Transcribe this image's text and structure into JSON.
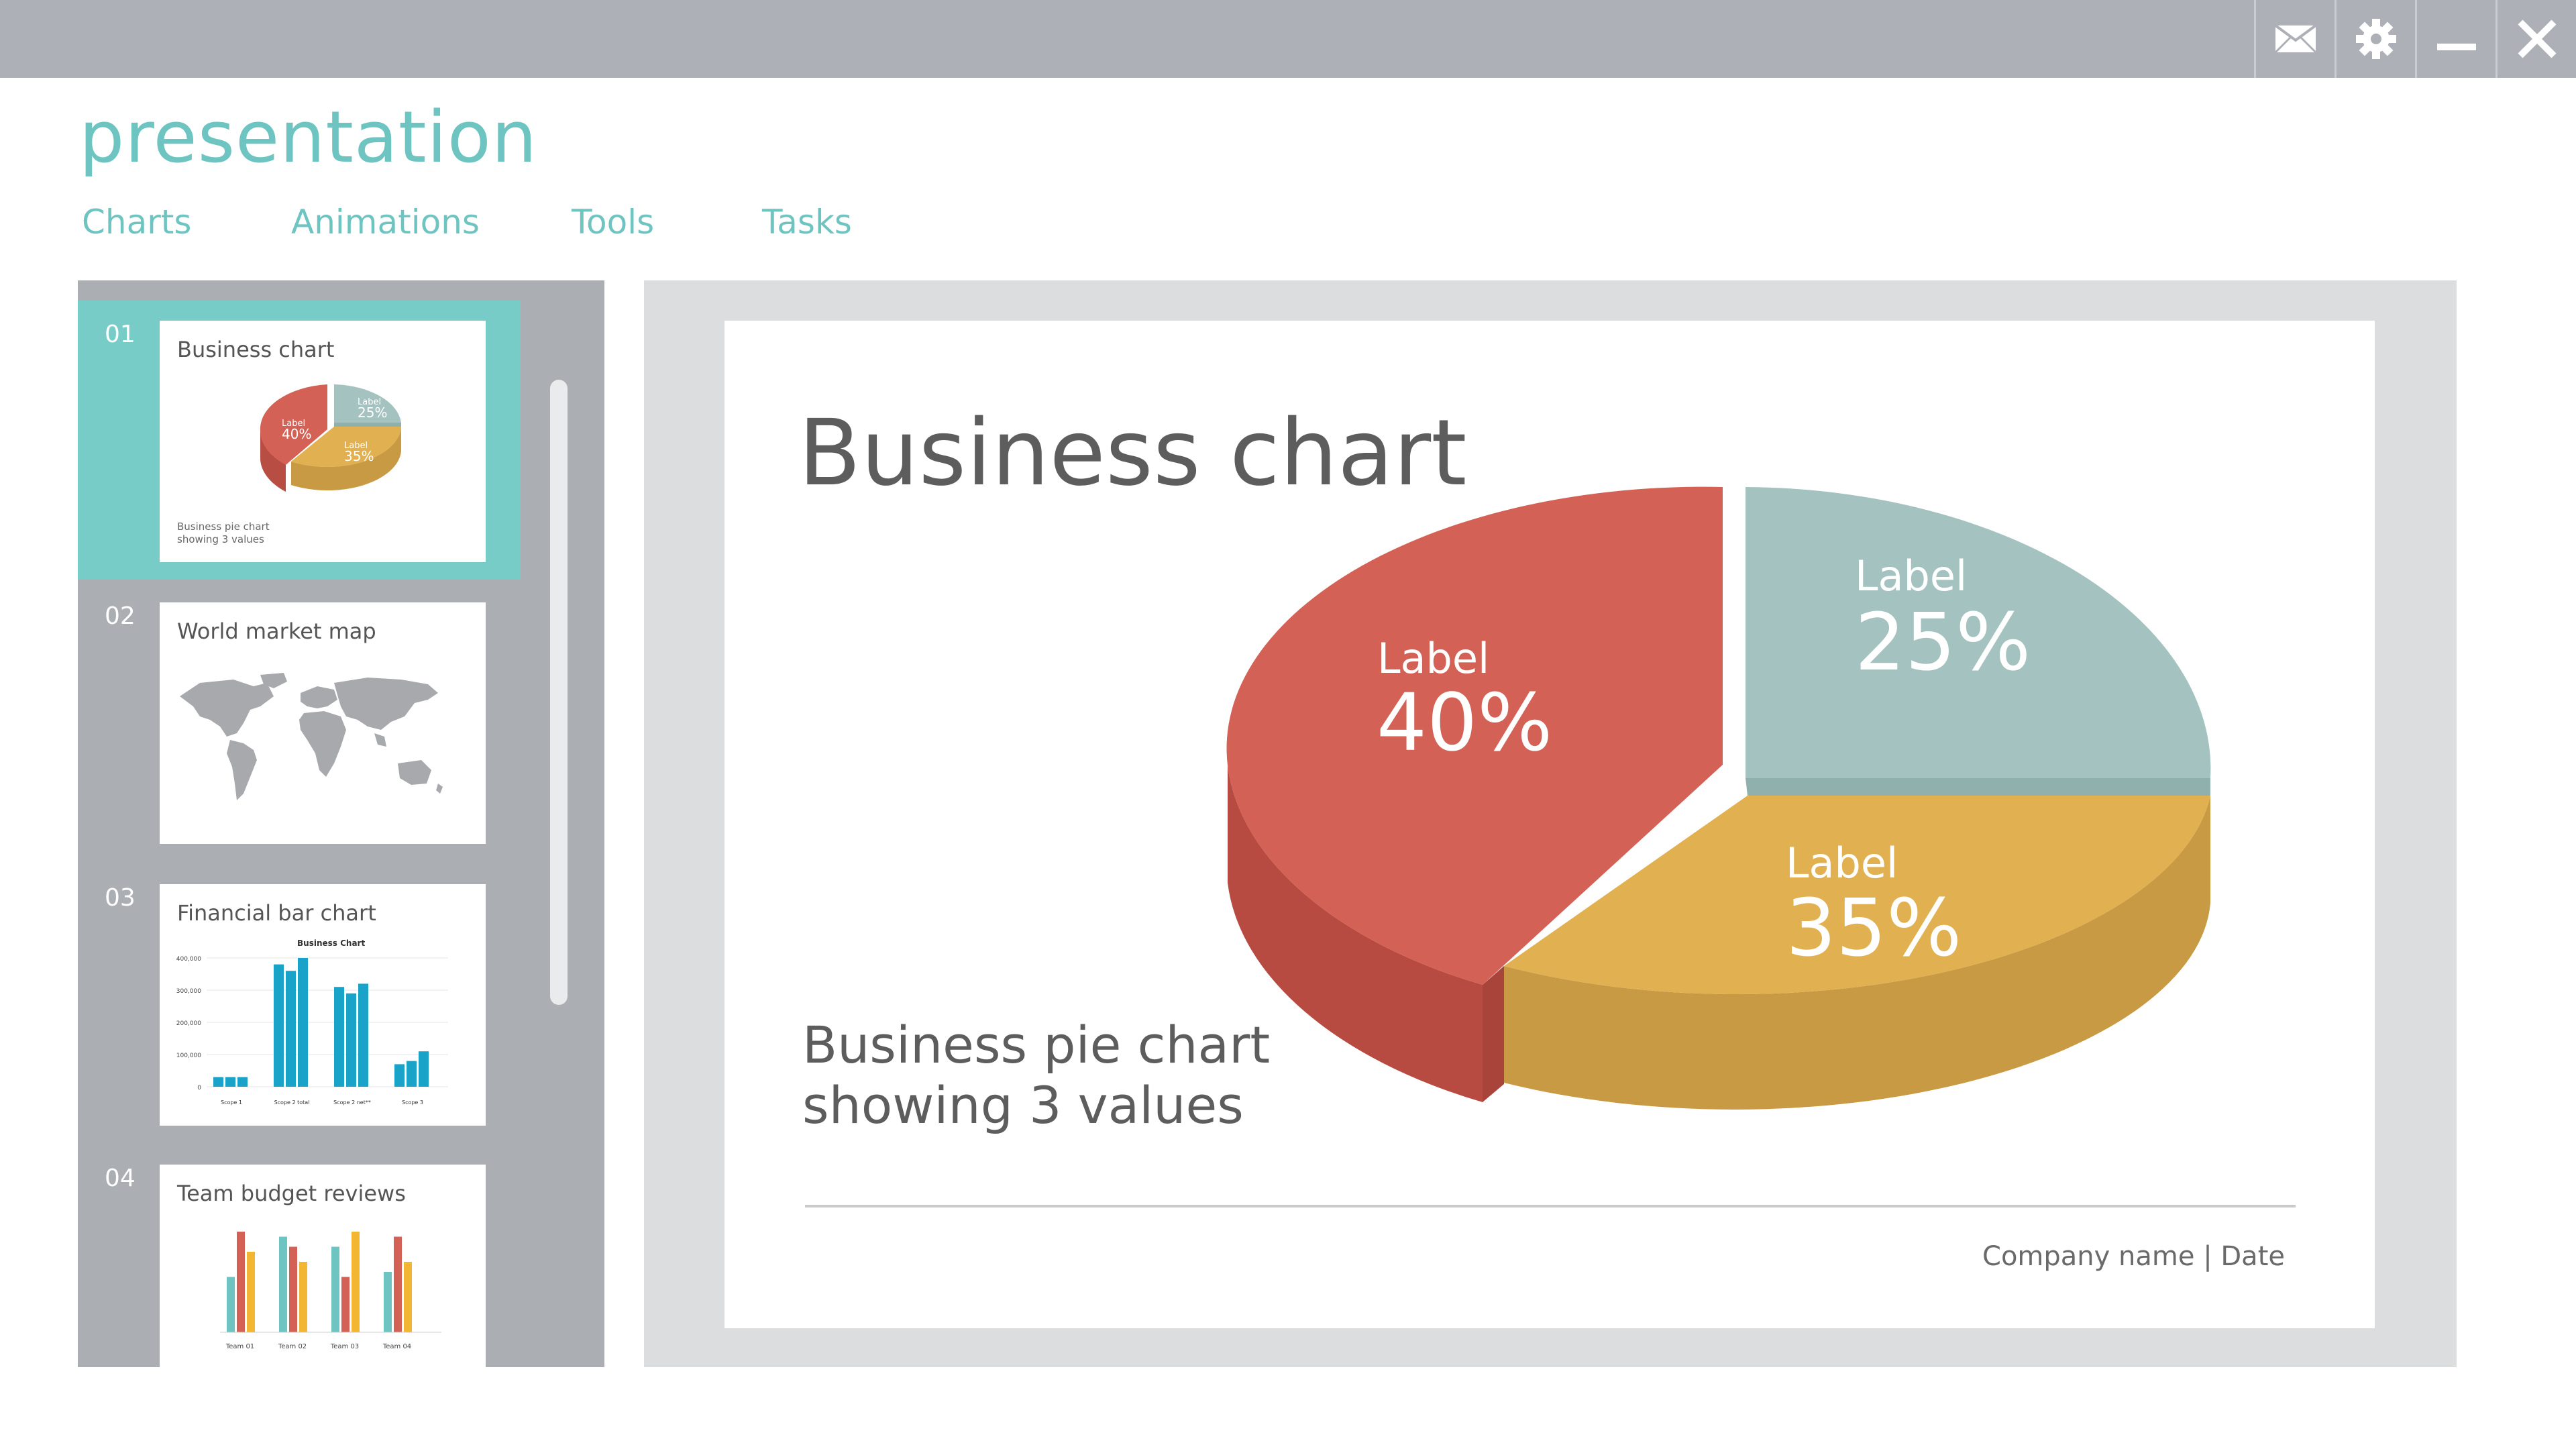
{
  "app": {
    "title": "presentation"
  },
  "window_controls": [
    "mail-icon",
    "gear-icon",
    "minimize-icon",
    "close-icon"
  ],
  "menu": [
    {
      "label": "Charts"
    },
    {
      "label": "Animations"
    },
    {
      "label": "Tools"
    },
    {
      "label": "Tasks"
    }
  ],
  "slides": [
    {
      "number": "01",
      "title": "Business chart",
      "note": "Business pie chart showing 3 values",
      "selected": true,
      "mini_labels": [
        {
          "label": "Label",
          "value": "40%"
        },
        {
          "label": "Label",
          "value": "25%"
        },
        {
          "label": "Label",
          "value": "35%"
        }
      ]
    },
    {
      "number": "02",
      "title": "World market map"
    },
    {
      "number": "03",
      "title": "Financial bar chart",
      "mini_chart": {
        "title": "Business Chart",
        "yticks": [
          "400,000",
          "300,000",
          "200,000",
          "100,000",
          "0"
        ],
        "groups": [
          "Scope 1",
          "Scope 2 total",
          "Scope 2 net**",
          "Scope 3"
        ],
        "values": [
          [
            30000,
            30000,
            30000
          ],
          [
            380000,
            360000,
            400000
          ],
          [
            310000,
            290000,
            320000
          ],
          [
            70000,
            80000,
            110000
          ]
        ]
      }
    },
    {
      "number": "04",
      "title": "Team budget reviews",
      "mini_chart": {
        "groups": [
          "Team 01",
          "Team 02",
          "Team 03",
          "Team 04"
        ],
        "values": [
          [
            0.55,
            1.0,
            0.8
          ],
          [
            0.95,
            0.85,
            0.7
          ],
          [
            0.85,
            0.55,
            1.0
          ],
          [
            0.6,
            0.95,
            0.7
          ]
        ]
      }
    }
  ],
  "main_slide": {
    "title": "Business chart",
    "subtitle_line1": "Business pie chart",
    "subtitle_line2": "showing 3 values",
    "footer": "Company name  |  Date"
  },
  "colors": {
    "red": "#d46155",
    "grey": "#a4c2bf",
    "yellow": "#e1b050",
    "accent": "#6ec4c0",
    "bar_blue": "#1aa3c8"
  },
  "chart_data": {
    "type": "pie",
    "slices": [
      {
        "label": "Label",
        "value": 40,
        "display": "40%",
        "color": "#d46155"
      },
      {
        "label": "Label",
        "value": 25,
        "display": "25%",
        "color": "#a4c2bf"
      },
      {
        "label": "Label",
        "value": 35,
        "display": "35%",
        "color": "#e1b050"
      }
    ]
  }
}
